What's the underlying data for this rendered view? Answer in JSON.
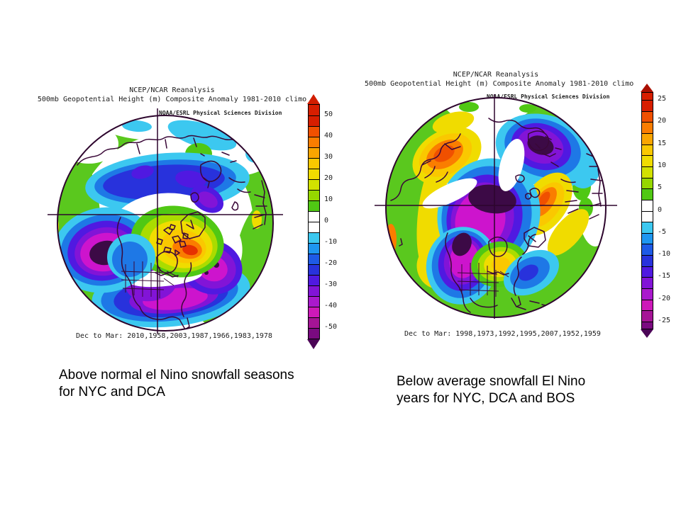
{
  "figures": {
    "left": {
      "title_line1": "NCEP/NCAR Reanalysis",
      "title_line2": "500mb Geopotential Height (m) Composite Anomaly 1981-2010 climo",
      "badge": "NOAA/ESRL Physical Sciences Division",
      "caption": "Dec to Mar: 2010,1958,2003,1987,1966,1983,1978",
      "annotation_line1": "Above normal el Nino snowfall seasons",
      "annotation_line2": "for NYC and DCA"
    },
    "right": {
      "title_line1": "NCEP/NCAR Reanalysis",
      "title_line2": "500mb Geopotential Height (m) Composite Anomaly 1981-2010 climo",
      "badge": "NOAA/ESRL Physical Sciences Division",
      "caption": "Dec to Mar: 1998,1973,1992,1995,2007,1952,1959",
      "annotation_line1": "Below average snowfall El Nino",
      "annotation_line2": "years for NYC, DCA and BOS"
    }
  },
  "chart_data": [
    {
      "type": "heatmap",
      "subtype": "polar_stereographic_composite_anomaly_map",
      "title": "NCEP/NCAR Reanalysis",
      "subtitle": "500mb Geopotential Height (m) Composite Anomaly 1981-2010 climo",
      "source_label": "NOAA/ESRL Physical Sciences Division",
      "season": "Dec to Mar",
      "composite_years": [
        2010,
        1958,
        2003,
        1987,
        1966,
        1983,
        1978
      ],
      "units": "m",
      "colorbar": {
        "ticks": [
          "50",
          "40",
          "30",
          "20",
          "10",
          "0",
          "-10",
          "-20",
          "-30",
          "-40",
          "-50"
        ],
        "range": [
          -50,
          50
        ],
        "segment_step": 5,
        "up_arrow": "#d21e00",
        "top_cap": "#d71e00",
        "colors": [
          "#d71e00",
          "#f05000",
          "#fa7d00",
          "#faa500",
          "#fac800",
          "#f0dc00",
          "#d2e100",
          "#96d700",
          "#50c814",
          "#ffffff",
          "#ffffff",
          "#3cc8f0",
          "#1e96f0",
          "#1e5ae6",
          "#2832dc",
          "#5019e1",
          "#8214d7",
          "#aa19cd",
          "#cd19b9",
          "#a51496"
        ],
        "bottom_cap": "#7a0a80",
        "down_arrow": "#4b0556"
      },
      "anomaly_features": [
        "Strong positive anomaly (orange/red, +30 to +50 m) centered over Hudson Bay and eastern Canada",
        "Deep negative anomaly (dark purple, near -50 m) over the North Pacific",
        "Negative anomaly band (blue) stretching across the Arctic from Siberia toward Greenland",
        "Negative trough (magenta/purple) across the southern United States and western Atlantic",
        "Positive green ring along the mid-latitudes with cyan patches over northern Siberia"
      ]
    },
    {
      "type": "heatmap",
      "subtype": "polar_stereographic_composite_anomaly_map",
      "title": "NCEP/NCAR Reanalysis",
      "subtitle": "500mb Geopotential Height (m) Composite Anomaly 1981-2010 climo",
      "source_label": "NOAA/ESRL Physical Sciences Division",
      "season": "Dec to Mar",
      "composite_years": [
        1998,
        1973,
        1992,
        1995,
        2007,
        1952,
        1959
      ],
      "units": "m",
      "colorbar": {
        "ticks": [
          "25",
          "20",
          "15",
          "10",
          "5",
          "0",
          "-5",
          "-10",
          "-15",
          "-20",
          "-25"
        ],
        "range": [
          -25,
          25
        ],
        "segment_step": 2.5,
        "up_arrow": "#aa0f00",
        "top_cap": "#d71e00",
        "colors": [
          "#d71e00",
          "#f05000",
          "#fa7d00",
          "#faa500",
          "#fac800",
          "#f0dc00",
          "#d2e100",
          "#96d700",
          "#50c814",
          "#ffffff",
          "#ffffff",
          "#3cc8f0",
          "#1e96f0",
          "#1e5ae6",
          "#2832dc",
          "#5019e1",
          "#8214d7",
          "#aa19cd",
          "#cd19b9",
          "#a51496"
        ],
        "bottom_cap": "#7a0a80",
        "down_arrow": "#4b0556"
      },
      "anomaly_features": [
        "Deep negative anomaly (dark purple, -20 to -25 m) over the Arctic pole extending down western North America",
        "Negative anomaly (purple/blue) over Scandinavia and northwest Russia",
        "Positive anomaly (orange, +15 to +25 m) over central Siberia",
        "Positive anomaly (orange/yellow) over the North Atlantic near the British Isles",
        "Positive anomaly (yellow, ~+10 m) over eastern North America",
        "Broad positive green ring along the mid-latitudes"
      ]
    }
  ]
}
